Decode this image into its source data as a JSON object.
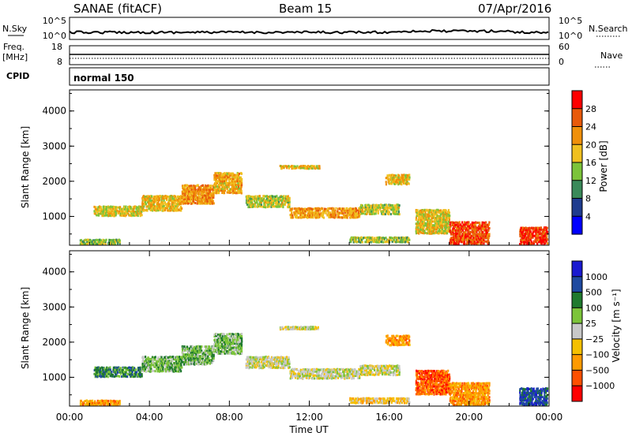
{
  "header": {
    "station": "SANAE (fitACF)",
    "beam": "Beam 15",
    "date": "07/Apr/2016"
  },
  "summary_panels": {
    "nsky_label": "N.Sky",
    "nsky_ticks": [
      "10^5",
      "10^0"
    ],
    "nsearch_label": "N.Search",
    "freq_label": "Freq.",
    "freq_unit": "[MHz]",
    "freq_ticks": [
      "18",
      "8"
    ],
    "nave_label": "Nave",
    "nave_ticks": [
      "60",
      "0"
    ],
    "cpid_label": "CPID",
    "cpid_value": "normal 150"
  },
  "colors": {
    "power": [
      "#0000ff",
      "#1f3c8f",
      "#3a8a5a",
      "#7cc43a",
      "#f0c020",
      "#f0900a",
      "#e85a0a",
      "#ff0000"
    ],
    "velocity": [
      "#ff0000",
      "#ff5000",
      "#ff9a00",
      "#f5c000",
      "#c8c8c8",
      "#7cc43a",
      "#1f7a2e",
      "#1f4aa0",
      "#1a1ad0"
    ]
  },
  "chart_data": [
    {
      "type": "heatmap",
      "title": "Power",
      "ylabel": "Slant Range [km]",
      "ylim": [
        180,
        4600
      ],
      "yticks": [
        "1000",
        "2000",
        "3000",
        "4000"
      ],
      "xlim_hours": [
        0,
        24
      ],
      "colorbar_label": "Power [dB]",
      "colorbar_ticks": [
        "4",
        "8",
        "12",
        "16",
        "20",
        "24",
        "28"
      ],
      "colorbar_range": [
        0,
        32
      ],
      "bands": [
        {
          "t0": 1.2,
          "t1": 3.6,
          "r0": 1000,
          "r1": 1300,
          "v": 17
        },
        {
          "t0": 3.6,
          "t1": 5.6,
          "r0": 1150,
          "r1": 1600,
          "v": 19
        },
        {
          "t0": 5.6,
          "t1": 7.2,
          "r0": 1350,
          "r1": 1900,
          "v": 22
        },
        {
          "t0": 7.2,
          "t1": 8.6,
          "r0": 1650,
          "r1": 2250,
          "v": 20
        },
        {
          "t0": 8.8,
          "t1": 11.0,
          "r0": 1250,
          "r1": 1600,
          "v": 16
        },
        {
          "t0": 11.0,
          "t1": 14.5,
          "r0": 950,
          "r1": 1250,
          "v": 21
        },
        {
          "t0": 14.5,
          "t1": 16.5,
          "r0": 1050,
          "r1": 1350,
          "v": 16
        },
        {
          "t0": 10.5,
          "t1": 12.5,
          "r0": 2350,
          "r1": 2450,
          "v": 18
        },
        {
          "t0": 15.8,
          "t1": 17.0,
          "r0": 1900,
          "r1": 2200,
          "v": 19
        },
        {
          "t0": 17.3,
          "t1": 19.0,
          "r0": 500,
          "r1": 1200,
          "v": 18
        },
        {
          "t0": 19.0,
          "t1": 21.0,
          "r0": 200,
          "r1": 850,
          "v": 27
        },
        {
          "t0": 22.5,
          "t1": 23.9,
          "r0": 200,
          "r1": 700,
          "v": 28
        },
        {
          "t0": 0.5,
          "t1": 2.5,
          "r0": 200,
          "r1": 350,
          "v": 14
        },
        {
          "t0": 14.0,
          "t1": 17.0,
          "r0": 250,
          "r1": 420,
          "v": 15
        }
      ]
    },
    {
      "type": "heatmap",
      "title": "Velocity",
      "ylabel": "Slant Range [km]",
      "ylim": [
        180,
        4600
      ],
      "yticks": [
        "1000",
        "2000",
        "3000",
        "4000"
      ],
      "xlabel": "Time UT",
      "xticks": [
        "00:00",
        "04:00",
        "08:00",
        "12:00",
        "16:00",
        "20:00",
        "00:00"
      ],
      "xlim_hours": [
        0,
        24
      ],
      "colorbar_label": "Velocity [m s⁻¹]",
      "colorbar_ticks": [
        "1000",
        "500",
        "100",
        "25",
        "−25",
        "−100",
        "−500",
        "−1000"
      ],
      "bands": [
        {
          "t0": 1.2,
          "t1": 3.6,
          "r0": 1000,
          "r1": 1300,
          "v": 6
        },
        {
          "t0": 3.6,
          "t1": 5.6,
          "r0": 1150,
          "r1": 1600,
          "v": 5
        },
        {
          "t0": 5.6,
          "t1": 7.2,
          "r0": 1350,
          "r1": 1900,
          "v": 5
        },
        {
          "t0": 7.2,
          "t1": 8.6,
          "r0": 1650,
          "r1": 2250,
          "v": 5
        },
        {
          "t0": 8.8,
          "t1": 11.0,
          "r0": 1250,
          "r1": 1600,
          "v": 4
        },
        {
          "t0": 11.0,
          "t1": 14.5,
          "r0": 950,
          "r1": 1250,
          "v": 4
        },
        {
          "t0": 14.5,
          "t1": 16.5,
          "r0": 1050,
          "r1": 1350,
          "v": 4
        },
        {
          "t0": 10.5,
          "t1": 12.5,
          "r0": 2350,
          "r1": 2450,
          "v": 4
        },
        {
          "t0": 15.8,
          "t1": 17.0,
          "r0": 1900,
          "r1": 2200,
          "v": 2
        },
        {
          "t0": 17.3,
          "t1": 19.0,
          "r0": 500,
          "r1": 1200,
          "v": 1
        },
        {
          "t0": 19.0,
          "t1": 21.0,
          "r0": 200,
          "r1": 850,
          "v": 2
        },
        {
          "t0": 22.5,
          "t1": 23.9,
          "r0": 200,
          "r1": 700,
          "v": 7
        },
        {
          "t0": 0.5,
          "t1": 2.5,
          "r0": 200,
          "r1": 350,
          "v": 2
        },
        {
          "t0": 14.0,
          "t1": 17.0,
          "r0": 250,
          "r1": 420,
          "v": 3
        }
      ]
    }
  ]
}
